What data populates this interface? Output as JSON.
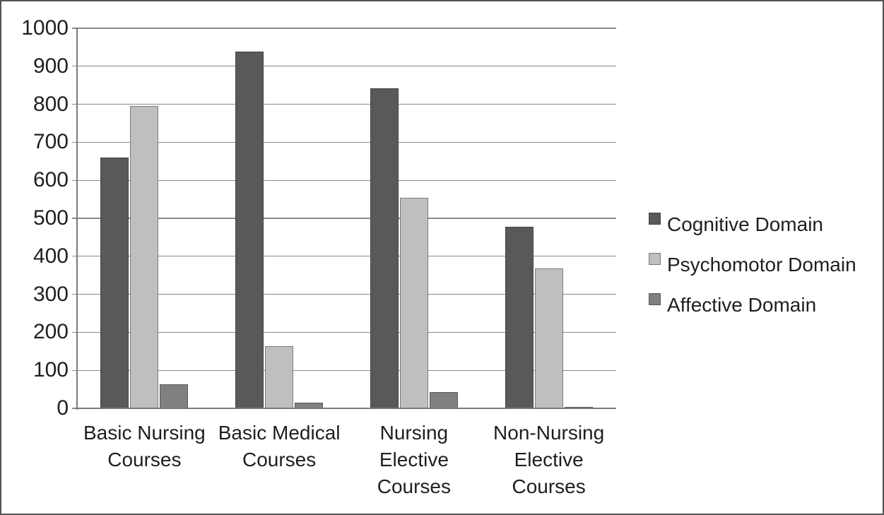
{
  "chart_data": {
    "type": "bar",
    "title": "",
    "categories": [
      "Basic Nursing\nCourses",
      "Basic Medical\nCourses",
      "Nursing\nElective\nCourses",
      "Non-Nursing\nElective\nCourses"
    ],
    "series": [
      {
        "name": "Cognitive Domain",
        "color": "#595959",
        "values": [
          660,
          938,
          842,
          478
        ]
      },
      {
        "name": "Psychomotor Domain",
        "color": "#bfbfbf",
        "values": [
          795,
          163,
          553,
          368
        ]
      },
      {
        "name": "Affective Domain",
        "color": "#808080",
        "values": [
          63,
          15,
          42,
          4
        ]
      }
    ],
    "xlabel": "",
    "ylabel": "",
    "ylim": [
      0,
      1000
    ],
    "ytick_step": 100,
    "grid": "horizontal",
    "legend_position": "right",
    "colors": {
      "text": "#1f1f1f",
      "gridline": "#8a8a8a",
      "axis": "#7a7a7a",
      "background": "#ffffff",
      "figure_border": "#555555"
    }
  }
}
